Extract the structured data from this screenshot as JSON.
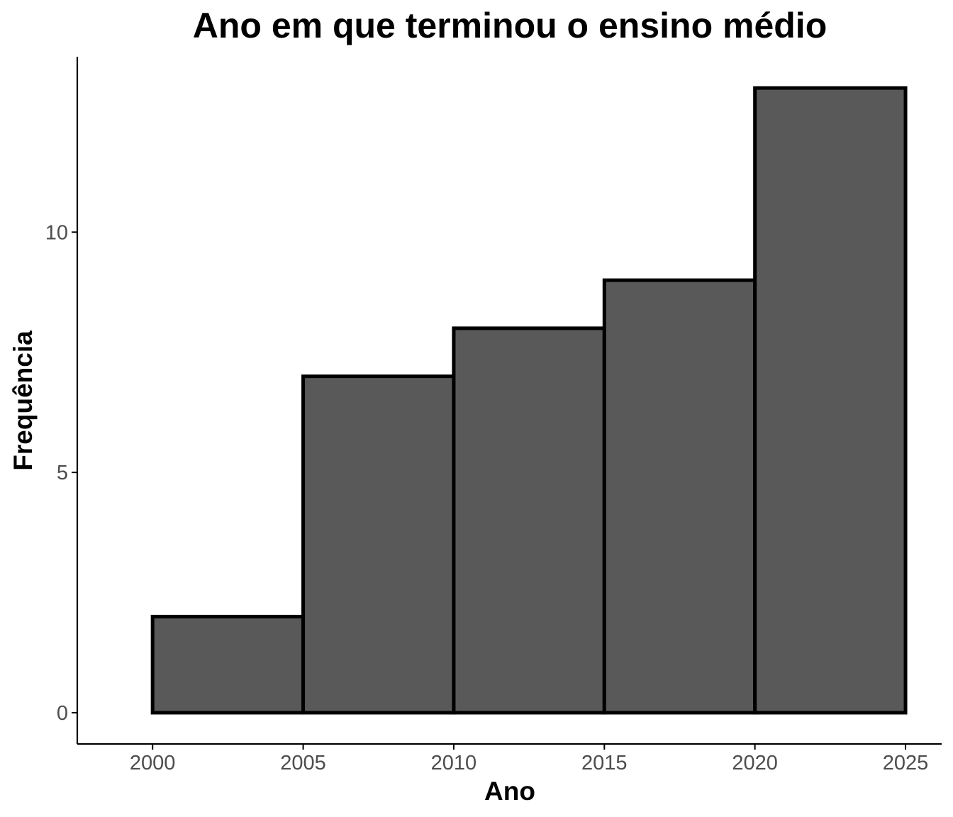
{
  "chart_data": {
    "type": "bar",
    "title": "Ano em que terminou o ensino médio",
    "xlabel": "Ano",
    "ylabel": "Frequência",
    "bins": [
      {
        "x0": 2000,
        "x1": 2005,
        "value": 2
      },
      {
        "x0": 2005,
        "x1": 2010,
        "value": 7
      },
      {
        "x0": 2010,
        "x1": 2015,
        "value": 8
      },
      {
        "x0": 2015,
        "x1": 2020,
        "value": 9
      },
      {
        "x0": 2020,
        "x1": 2025,
        "value": 13
      }
    ],
    "xticks": [
      "2000",
      "2005",
      "2010",
      "2015",
      "2020",
      "2025"
    ],
    "yticks": [
      "0",
      "5",
      "10"
    ],
    "xlim": [
      1997.5,
      2026.2
    ],
    "ylim": [
      -0.65,
      13.65
    ],
    "grid": false,
    "colors": {
      "bar_fill": "#595959",
      "bar_stroke": "#000000",
      "axis": "#000000",
      "tick_text": "#4d4d4d"
    }
  }
}
